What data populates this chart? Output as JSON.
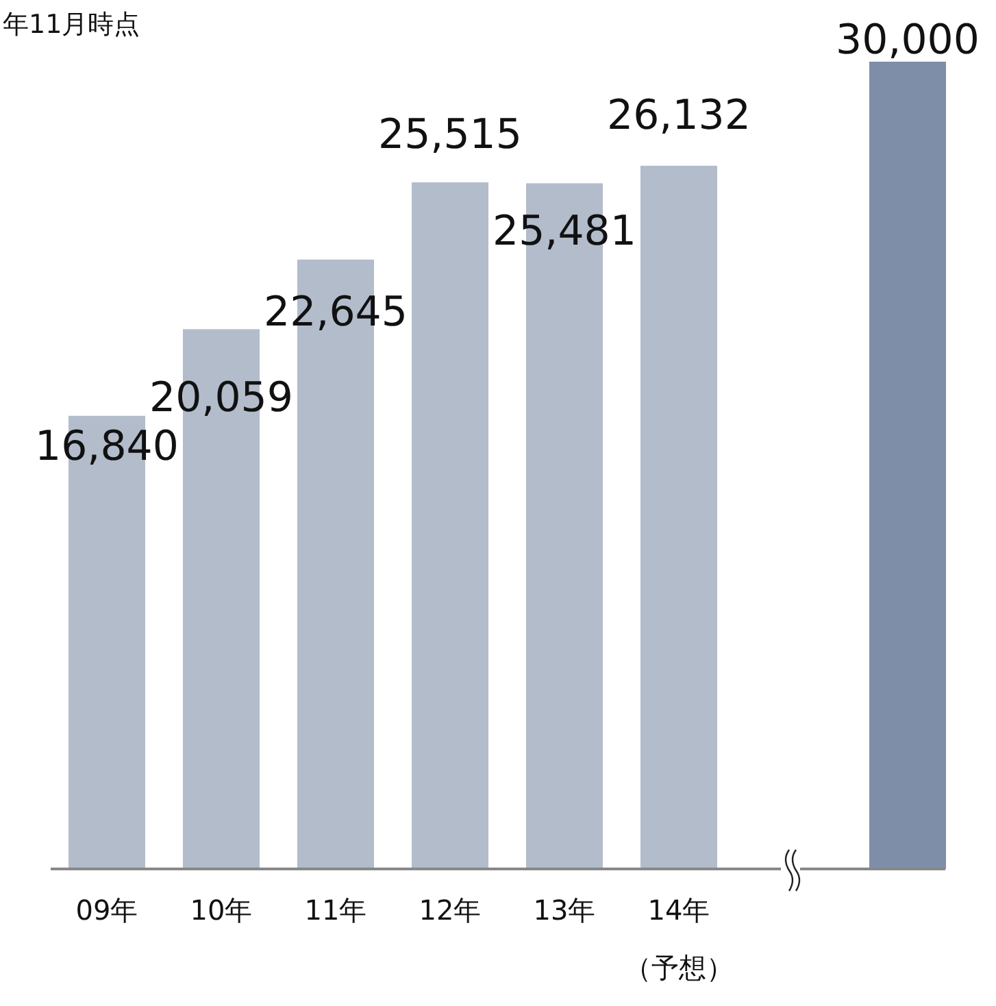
{
  "chart_data": {
    "type": "bar",
    "title": "年11月時点",
    "categories": [
      "09年",
      "10年",
      "11年",
      "12年",
      "13年",
      "14年（予想）",
      null,
      null
    ],
    "values": [
      16840,
      20059,
      22645,
      25515,
      25481,
      26132,
      null,
      30000
    ],
    "value_labels": [
      "16,840",
      "20,059",
      "22,645",
      "25,515",
      "25,481",
      "26,132",
      null,
      "30,000"
    ],
    "colors": [
      "#b2bccb",
      "#b2bccb",
      "#b2bccb",
      "#b2bccb",
      "#b2bccb",
      "#b2bccb",
      null,
      "#7f8ea8"
    ]
  }
}
